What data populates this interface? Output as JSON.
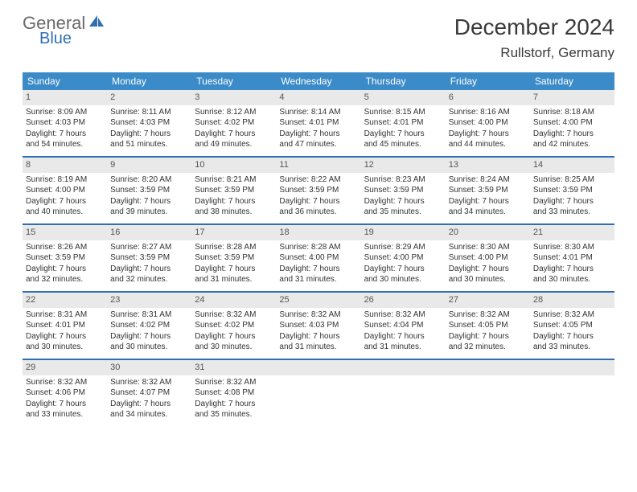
{
  "logo": {
    "part1": "General",
    "part2": "Blue"
  },
  "title": {
    "month": "December 2024",
    "location": "Rullstorf, Germany"
  },
  "colors": {
    "header_bg": "#3b8bc8",
    "header_text": "#ffffff",
    "daynum_bg": "#e9e9e9",
    "week_border": "#2f6fb3",
    "logo_gray": "#6a6a6a",
    "logo_blue": "#2f6fb3",
    "body_text": "#333333",
    "title_text": "#3a3a3a"
  },
  "day_headers": [
    "Sunday",
    "Monday",
    "Tuesday",
    "Wednesday",
    "Thursday",
    "Friday",
    "Saturday"
  ],
  "weeks": [
    [
      {
        "n": "1",
        "sr": "Sunrise: 8:09 AM",
        "ss": "Sunset: 4:03 PM",
        "d1": "Daylight: 7 hours",
        "d2": "and 54 minutes."
      },
      {
        "n": "2",
        "sr": "Sunrise: 8:11 AM",
        "ss": "Sunset: 4:03 PM",
        "d1": "Daylight: 7 hours",
        "d2": "and 51 minutes."
      },
      {
        "n": "3",
        "sr": "Sunrise: 8:12 AM",
        "ss": "Sunset: 4:02 PM",
        "d1": "Daylight: 7 hours",
        "d2": "and 49 minutes."
      },
      {
        "n": "4",
        "sr": "Sunrise: 8:14 AM",
        "ss": "Sunset: 4:01 PM",
        "d1": "Daylight: 7 hours",
        "d2": "and 47 minutes."
      },
      {
        "n": "5",
        "sr": "Sunrise: 8:15 AM",
        "ss": "Sunset: 4:01 PM",
        "d1": "Daylight: 7 hours",
        "d2": "and 45 minutes."
      },
      {
        "n": "6",
        "sr": "Sunrise: 8:16 AM",
        "ss": "Sunset: 4:00 PM",
        "d1": "Daylight: 7 hours",
        "d2": "and 44 minutes."
      },
      {
        "n": "7",
        "sr": "Sunrise: 8:18 AM",
        "ss": "Sunset: 4:00 PM",
        "d1": "Daylight: 7 hours",
        "d2": "and 42 minutes."
      }
    ],
    [
      {
        "n": "8",
        "sr": "Sunrise: 8:19 AM",
        "ss": "Sunset: 4:00 PM",
        "d1": "Daylight: 7 hours",
        "d2": "and 40 minutes."
      },
      {
        "n": "9",
        "sr": "Sunrise: 8:20 AM",
        "ss": "Sunset: 3:59 PM",
        "d1": "Daylight: 7 hours",
        "d2": "and 39 minutes."
      },
      {
        "n": "10",
        "sr": "Sunrise: 8:21 AM",
        "ss": "Sunset: 3:59 PM",
        "d1": "Daylight: 7 hours",
        "d2": "and 38 minutes."
      },
      {
        "n": "11",
        "sr": "Sunrise: 8:22 AM",
        "ss": "Sunset: 3:59 PM",
        "d1": "Daylight: 7 hours",
        "d2": "and 36 minutes."
      },
      {
        "n": "12",
        "sr": "Sunrise: 8:23 AM",
        "ss": "Sunset: 3:59 PM",
        "d1": "Daylight: 7 hours",
        "d2": "and 35 minutes."
      },
      {
        "n": "13",
        "sr": "Sunrise: 8:24 AM",
        "ss": "Sunset: 3:59 PM",
        "d1": "Daylight: 7 hours",
        "d2": "and 34 minutes."
      },
      {
        "n": "14",
        "sr": "Sunrise: 8:25 AM",
        "ss": "Sunset: 3:59 PM",
        "d1": "Daylight: 7 hours",
        "d2": "and 33 minutes."
      }
    ],
    [
      {
        "n": "15",
        "sr": "Sunrise: 8:26 AM",
        "ss": "Sunset: 3:59 PM",
        "d1": "Daylight: 7 hours",
        "d2": "and 32 minutes."
      },
      {
        "n": "16",
        "sr": "Sunrise: 8:27 AM",
        "ss": "Sunset: 3:59 PM",
        "d1": "Daylight: 7 hours",
        "d2": "and 32 minutes."
      },
      {
        "n": "17",
        "sr": "Sunrise: 8:28 AM",
        "ss": "Sunset: 3:59 PM",
        "d1": "Daylight: 7 hours",
        "d2": "and 31 minutes."
      },
      {
        "n": "18",
        "sr": "Sunrise: 8:28 AM",
        "ss": "Sunset: 4:00 PM",
        "d1": "Daylight: 7 hours",
        "d2": "and 31 minutes."
      },
      {
        "n": "19",
        "sr": "Sunrise: 8:29 AM",
        "ss": "Sunset: 4:00 PM",
        "d1": "Daylight: 7 hours",
        "d2": "and 30 minutes."
      },
      {
        "n": "20",
        "sr": "Sunrise: 8:30 AM",
        "ss": "Sunset: 4:00 PM",
        "d1": "Daylight: 7 hours",
        "d2": "and 30 minutes."
      },
      {
        "n": "21",
        "sr": "Sunrise: 8:30 AM",
        "ss": "Sunset: 4:01 PM",
        "d1": "Daylight: 7 hours",
        "d2": "and 30 minutes."
      }
    ],
    [
      {
        "n": "22",
        "sr": "Sunrise: 8:31 AM",
        "ss": "Sunset: 4:01 PM",
        "d1": "Daylight: 7 hours",
        "d2": "and 30 minutes."
      },
      {
        "n": "23",
        "sr": "Sunrise: 8:31 AM",
        "ss": "Sunset: 4:02 PM",
        "d1": "Daylight: 7 hours",
        "d2": "and 30 minutes."
      },
      {
        "n": "24",
        "sr": "Sunrise: 8:32 AM",
        "ss": "Sunset: 4:02 PM",
        "d1": "Daylight: 7 hours",
        "d2": "and 30 minutes."
      },
      {
        "n": "25",
        "sr": "Sunrise: 8:32 AM",
        "ss": "Sunset: 4:03 PM",
        "d1": "Daylight: 7 hours",
        "d2": "and 31 minutes."
      },
      {
        "n": "26",
        "sr": "Sunrise: 8:32 AM",
        "ss": "Sunset: 4:04 PM",
        "d1": "Daylight: 7 hours",
        "d2": "and 31 minutes."
      },
      {
        "n": "27",
        "sr": "Sunrise: 8:32 AM",
        "ss": "Sunset: 4:05 PM",
        "d1": "Daylight: 7 hours",
        "d2": "and 32 minutes."
      },
      {
        "n": "28",
        "sr": "Sunrise: 8:32 AM",
        "ss": "Sunset: 4:05 PM",
        "d1": "Daylight: 7 hours",
        "d2": "and 33 minutes."
      }
    ],
    [
      {
        "n": "29",
        "sr": "Sunrise: 8:32 AM",
        "ss": "Sunset: 4:06 PM",
        "d1": "Daylight: 7 hours",
        "d2": "and 33 minutes."
      },
      {
        "n": "30",
        "sr": "Sunrise: 8:32 AM",
        "ss": "Sunset: 4:07 PM",
        "d1": "Daylight: 7 hours",
        "d2": "and 34 minutes."
      },
      {
        "n": "31",
        "sr": "Sunrise: 8:32 AM",
        "ss": "Sunset: 4:08 PM",
        "d1": "Daylight: 7 hours",
        "d2": "and 35 minutes."
      },
      {
        "empty": true
      },
      {
        "empty": true
      },
      {
        "empty": true
      },
      {
        "empty": true
      }
    ]
  ]
}
